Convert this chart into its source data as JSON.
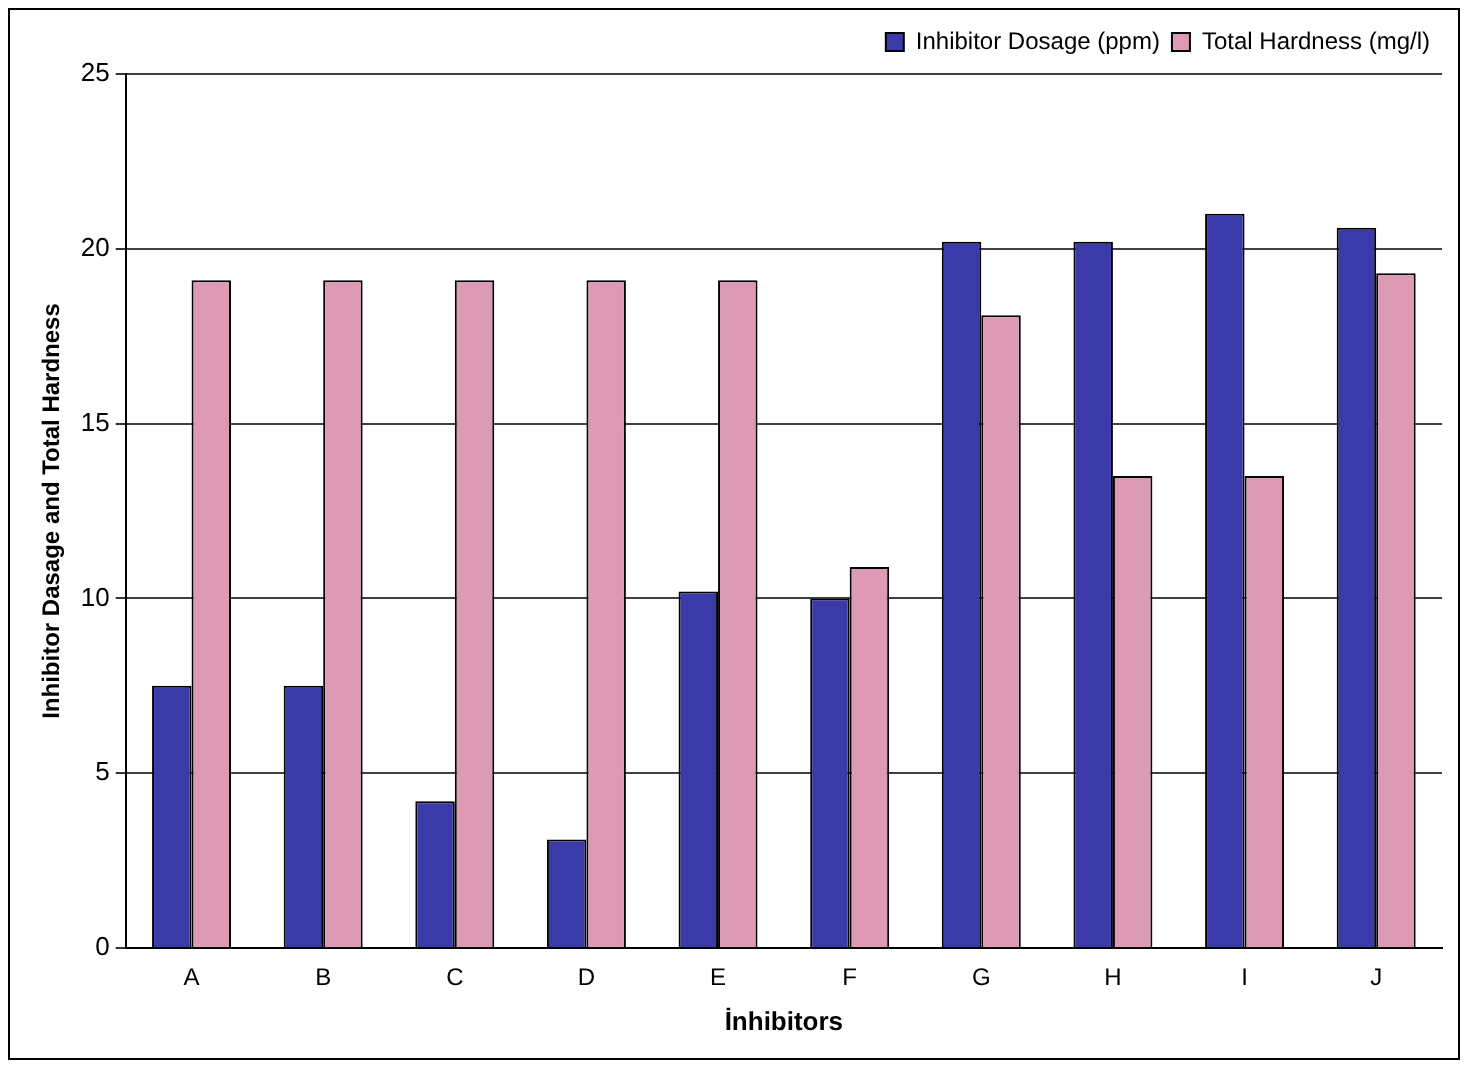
{
  "chart_data": {
    "type": "bar",
    "xlabel": "İnhibitors",
    "ylabel": "Inhibitor Dasage and Total Hardness",
    "categories": [
      "A",
      "B",
      "C",
      "D",
      "E",
      "F",
      "G",
      "H",
      "I",
      "J"
    ],
    "series": [
      {
        "name": "Inhibitor Dosage (ppm)",
        "color": "#3a3aa8",
        "values": [
          7.5,
          7.5,
          4.2,
          3.1,
          10.2,
          10.0,
          20.2,
          20.2,
          21.0,
          20.6
        ]
      },
      {
        "name": "Total Hardness (mg/l)",
        "color": "#dc9ab4",
        "values": [
          19.1,
          19.1,
          19.1,
          19.1,
          19.1,
          10.9,
          18.1,
          13.5,
          13.5,
          19.3
        ]
      }
    ],
    "ylim": [
      0,
      25
    ],
    "yticks": [
      0,
      5,
      10,
      15,
      20,
      25
    ],
    "grid": "y",
    "legend": "top"
  }
}
